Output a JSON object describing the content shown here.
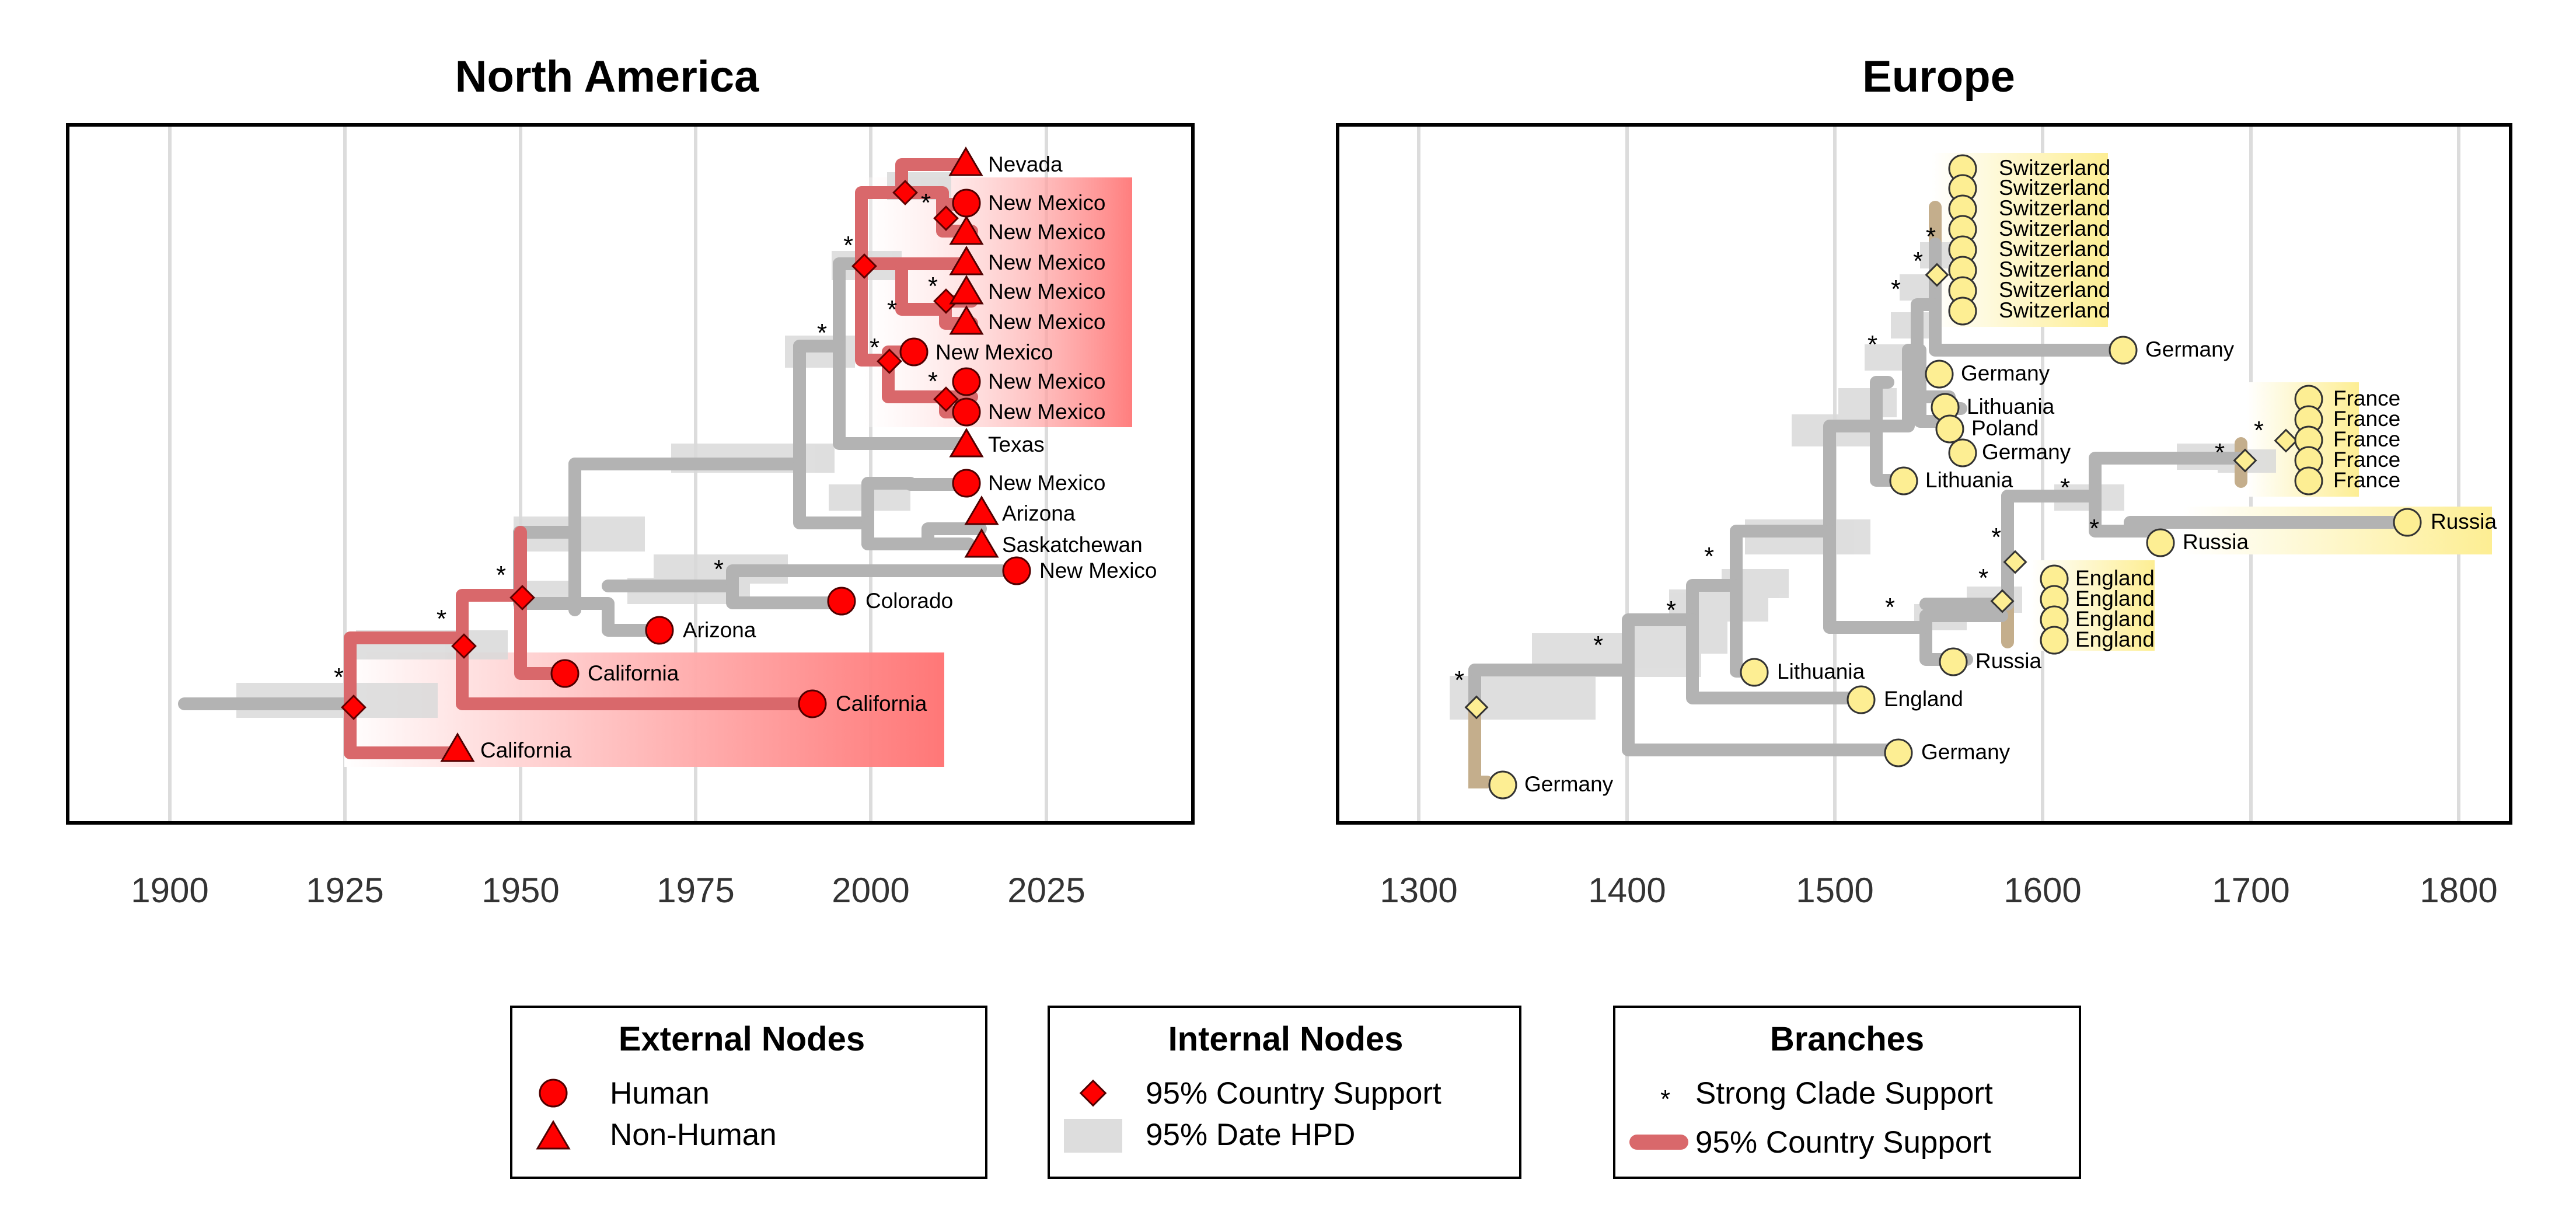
{
  "chart_data": [
    {
      "type": "tree",
      "title": "North America",
      "xlim": [
        1885,
        2047
      ],
      "x_ticks": [
        1900,
        1925,
        1950,
        1975,
        2000,
        2025
      ],
      "grid": true,
      "tips": [
        {
          "label": "Nevada",
          "date": 2013,
          "type": "non-human"
        },
        {
          "label": "New Mexico",
          "date": 2013,
          "type": "human"
        },
        {
          "label": "New Mexico",
          "date": 2013,
          "type": "non-human"
        },
        {
          "label": "New Mexico",
          "date": 2013,
          "type": "non-human"
        },
        {
          "label": "New Mexico",
          "date": 2013,
          "type": "non-human"
        },
        {
          "label": "New Mexico",
          "date": 2013,
          "type": "non-human"
        },
        {
          "label": "New Mexico",
          "date": 2006,
          "type": "human"
        },
        {
          "label": "New Mexico",
          "date": 2013,
          "type": "human"
        },
        {
          "label": "New Mexico",
          "date": 2013,
          "type": "human"
        },
        {
          "label": "Texas",
          "date": 2013,
          "type": "non-human"
        },
        {
          "label": "New Mexico",
          "date": 2013,
          "type": "human"
        },
        {
          "label": "Arizona",
          "date": 2015,
          "type": "non-human"
        },
        {
          "label": "Saskatchewan",
          "date": 2015,
          "type": "non-human"
        },
        {
          "label": "New Mexico",
          "date": 2020,
          "type": "human"
        },
        {
          "label": "Colorado",
          "date": 1996,
          "type": "human"
        },
        {
          "label": "Arizona",
          "date": 1970,
          "type": "human"
        },
        {
          "label": "California",
          "date": 1957,
          "type": "human"
        },
        {
          "label": "California",
          "date": 1991,
          "type": "human"
        },
        {
          "label": "California",
          "date": 1941,
          "type": "non-human"
        }
      ],
      "supported_nodes": [
        1926,
        1942,
        1950,
        1999,
        2002,
        2004,
        2010,
        2010,
        2010
      ],
      "strong_support_marks": 11
    },
    {
      "type": "tree",
      "title": "Europe",
      "xlim": [
        1260,
        1825
      ],
      "x_ticks": [
        1300,
        1400,
        1500,
        1600,
        1700,
        1800
      ],
      "grid": true,
      "tips": [
        {
          "label": "Switzerland",
          "date": 1560
        },
        {
          "label": "Switzerland",
          "date": 1560
        },
        {
          "label": "Switzerland",
          "date": 1560
        },
        {
          "label": "Switzerland",
          "date": 1560
        },
        {
          "label": "Switzerland",
          "date": 1560
        },
        {
          "label": "Switzerland",
          "date": 1560
        },
        {
          "label": "Switzerland",
          "date": 1560
        },
        {
          "label": "Switzerland",
          "date": 1560
        },
        {
          "label": "Germany",
          "date": 1633
        },
        {
          "label": "Germany",
          "date": 1544
        },
        {
          "label": "Lithuania",
          "date": 1547
        },
        {
          "label": "Poland",
          "date": 1549
        },
        {
          "label": "Germany",
          "date": 1555
        },
        {
          "label": "Lithuania",
          "date": 1526
        },
        {
          "label": "France",
          "date": 1722
        },
        {
          "label": "France",
          "date": 1722
        },
        {
          "label": "France",
          "date": 1722
        },
        {
          "label": "France",
          "date": 1722
        },
        {
          "label": "France",
          "date": 1722
        },
        {
          "label": "Russia",
          "date": 1768
        },
        {
          "label": "Russia",
          "date": 1650
        },
        {
          "label": "England",
          "date": 1597
        },
        {
          "label": "England",
          "date": 1597
        },
        {
          "label": "England",
          "date": 1597
        },
        {
          "label": "England",
          "date": 1597
        },
        {
          "label": "Russia",
          "date": 1551
        },
        {
          "label": "Lithuania",
          "date": 1457
        },
        {
          "label": "England",
          "date": 1507
        },
        {
          "label": "Germany",
          "date": 1525
        },
        {
          "label": "Germany",
          "date": 1335
        }
      ],
      "supported_nodes": [
        1328,
        1549,
        1585,
        1577,
        1698,
        1710
      ],
      "strong_support_marks": 12
    }
  ],
  "legends": {
    "external": {
      "title": "External Nodes",
      "items": [
        "Human",
        "Non-Human"
      ]
    },
    "internal": {
      "title": "Internal Nodes",
      "items": [
        "95% Country Support",
        "95% Date HPD"
      ]
    },
    "branches": {
      "title": "Branches",
      "items": [
        "Strong Clade Support",
        "95% Country Support"
      ]
    }
  },
  "colors": {
    "na_marker": "#ff0000",
    "na_branch": "#d9686b",
    "eu_marker": "#fdee93",
    "eu_branch": "#c4ae8c",
    "gray_branch": "#b3b3b3",
    "hpd": "#dddddd",
    "grid": "#dcdcdc"
  }
}
